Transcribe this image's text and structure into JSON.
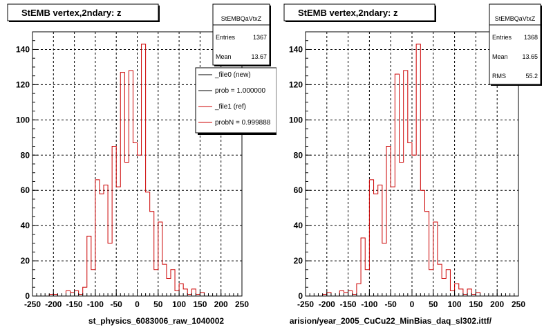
{
  "chart_data": [
    {
      "type": "histogram",
      "title": "StEMB  vertex,2ndary: z",
      "xlabel": "st_physics_6083006_raw_1040002",
      "xlim": [
        -250,
        250
      ],
      "ylim": [
        0,
        150
      ],
      "x_ticks": [
        -250,
        -200,
        -150,
        -100,
        -50,
        0,
        50,
        100,
        150,
        200,
        250
      ],
      "y_ticks": [
        0,
        20,
        40,
        60,
        80,
        100,
        120,
        140
      ],
      "grid": true,
      "bin_edges_start": -250,
      "bin_width": 10,
      "stats": {
        "name": "StEMBQaVtxZ",
        "rows": [
          {
            "label": "Entries",
            "value": "1367"
          },
          {
            "label": "Mean",
            "value": "13.67"
          }
        ]
      },
      "legend": {
        "placement": "top-right",
        "entries": [
          {
            "label": "_file0 (new)",
            "color": "#000000"
          },
          {
            "label": "prob = 1.000000",
            "color": "#000000"
          },
          {
            "label": "_file1 (ref)",
            "color": "#cc0000"
          },
          {
            "label": "probN = 0.999888",
            "color": "#cc0000"
          }
        ]
      },
      "series": [
        {
          "color": "#cc0000",
          "values": [
            0,
            0,
            0,
            0,
            1,
            1,
            0,
            0,
            3,
            2,
            3,
            1,
            5,
            34,
            15,
            66,
            58,
            63,
            30,
            85,
            62,
            127,
            76,
            128,
            87,
            80,
            143,
            59,
            48,
            15,
            42,
            18,
            10,
            15,
            3,
            7,
            4,
            1,
            4,
            1,
            2,
            0,
            0,
            0,
            0,
            0,
            0,
            0,
            0,
            0
          ]
        }
      ]
    },
    {
      "type": "histogram",
      "title": "StEMB  vertex,2ndary: z",
      "xlabel": "arision/year_2005_CuCu22_MinBias_daq_sl302.ittf/",
      "xlim": [
        -250,
        250
      ],
      "ylim": [
        0,
        150
      ],
      "x_ticks": [
        -250,
        -200,
        -150,
        -100,
        -50,
        0,
        50,
        100,
        150,
        200,
        250
      ],
      "y_ticks": [
        0,
        20,
        40,
        60,
        80,
        100,
        120,
        140
      ],
      "grid": true,
      "bin_edges_start": -250,
      "bin_width": 10,
      "stats": {
        "name": "StEMBQaVtxZ",
        "rows": [
          {
            "label": "Entries",
            "value": "1368"
          },
          {
            "label": "Mean",
            "value": "13.65"
          },
          {
            "label": "RMS",
            "value": "55.2"
          }
        ]
      },
      "series": [
        {
          "color": "#cc0000",
          "values": [
            0,
            0,
            0,
            0,
            1,
            2,
            0,
            0,
            3,
            2,
            3,
            1,
            7,
            33,
            15,
            66,
            58,
            63,
            30,
            85,
            62,
            126,
            76,
            128,
            87,
            80,
            143,
            60,
            48,
            15,
            42,
            18,
            10,
            15,
            3,
            7,
            4,
            1,
            4,
            1,
            2,
            0,
            0,
            0,
            0,
            0,
            0,
            0,
            0,
            0
          ]
        }
      ]
    }
  ],
  "colors": {
    "frame": "#000000",
    "grid": "#000000",
    "series": "#cc0000",
    "legend_shadow": "#000000"
  }
}
